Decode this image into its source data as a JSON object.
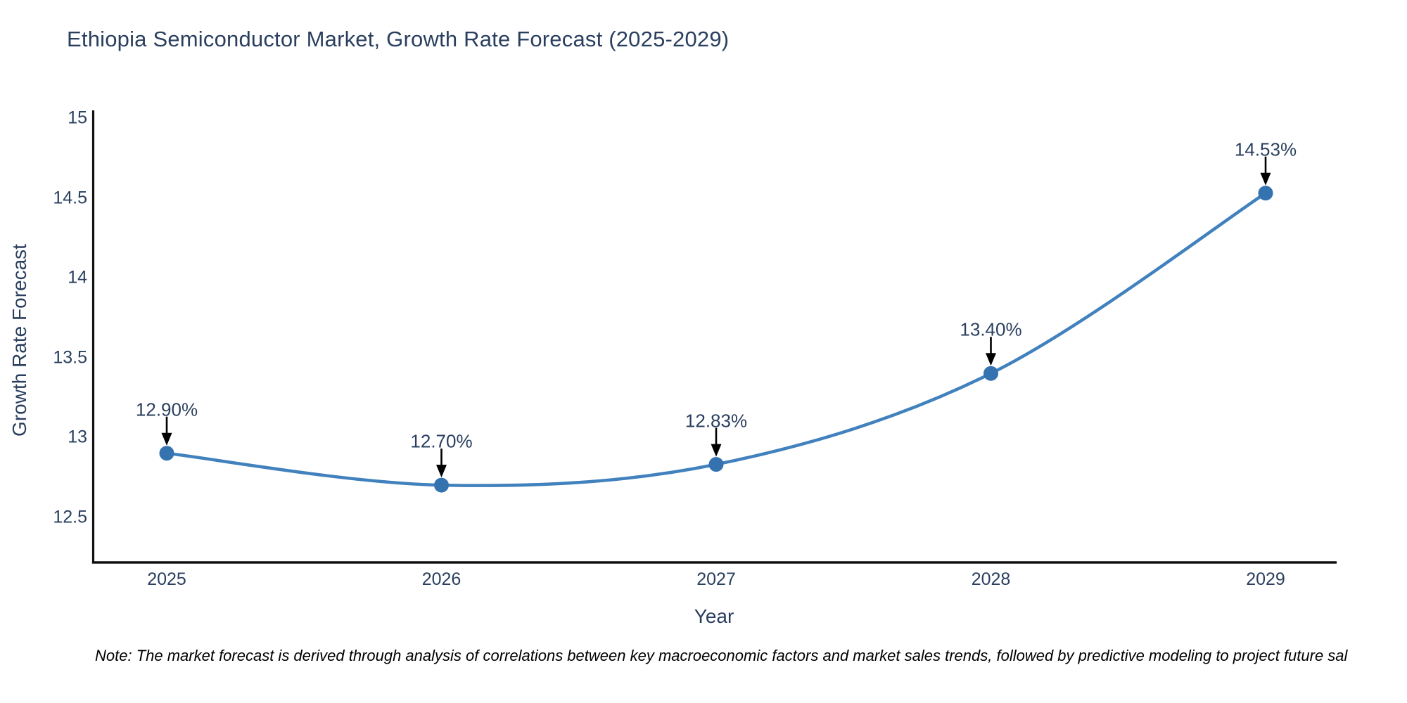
{
  "title": "Ethiopia Semiconductor Market, Growth Rate Forecast (2025-2029)",
  "x_axis": {
    "title": "Year",
    "tick_labels": [
      "2025",
      "2026",
      "2027",
      "2028",
      "2029"
    ]
  },
  "y_axis": {
    "title": "Growth Rate Forecast",
    "tick_labels": [
      "15",
      "14.5",
      "14",
      "13.5",
      "13",
      "12.5"
    ],
    "tick_values": [
      15,
      14.5,
      14,
      13.5,
      13,
      12.5
    ]
  },
  "note": "Note: The market forecast is derived through analysis of correlations between key macroeconomic factors and market sales trends, followed by predictive modeling to project future sal",
  "colors": {
    "line": "#4181bd",
    "marker": "#3572b0",
    "text": "#2a3f5f",
    "axis_line": "#111111",
    "arrow": "#000000",
    "background": "#ffffff"
  },
  "chart_data": {
    "type": "line",
    "title": "Ethiopia Semiconductor Market, Growth Rate Forecast (2025-2029)",
    "x": [
      2025,
      2026,
      2027,
      2028,
      2029
    ],
    "series": [
      {
        "name": "Growth Rate Forecast",
        "values": [
          12.9,
          12.7,
          12.83,
          13.4,
          14.53
        ]
      }
    ],
    "point_labels": [
      "12.90%",
      "12.70%",
      "12.83%",
      "13.40%",
      "14.53%"
    ],
    "xlabel": "Year",
    "ylabel": "Growth Rate Forecast",
    "ylim": [
      12.2,
      15.05
    ],
    "yticks": [
      12.5,
      13,
      13.5,
      14,
      14.5,
      15
    ],
    "line_shape": "spline",
    "grid": false,
    "legend": false,
    "annotations": "black arrows pointing down at each data point with percentage labels above"
  }
}
